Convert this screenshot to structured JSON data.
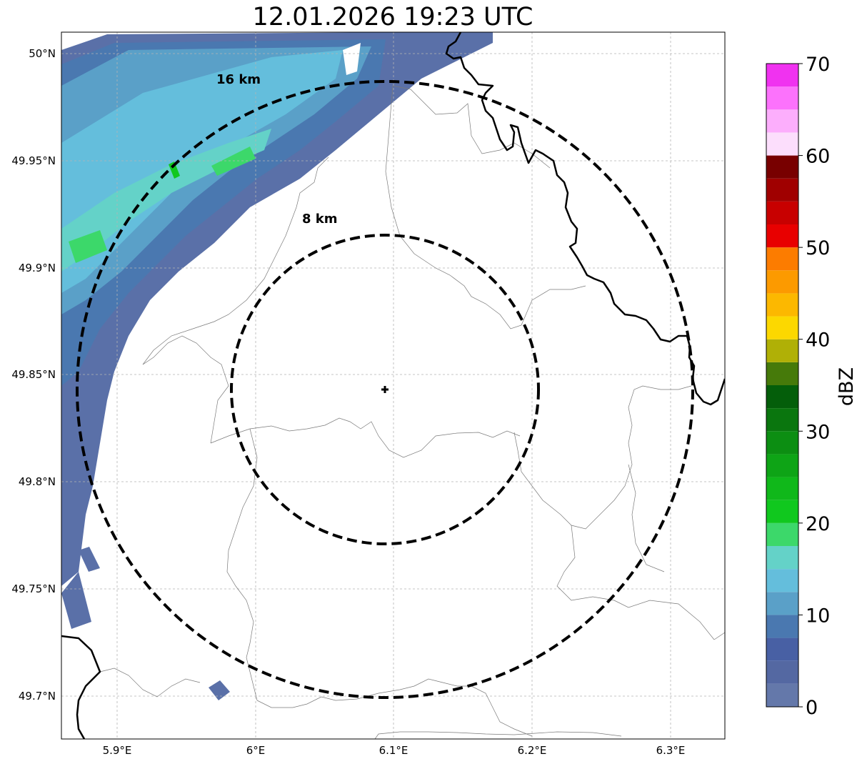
{
  "title": "12.01.2026 19:23 UTC",
  "map": {
    "lon_range": [
      5.86,
      6.34
    ],
    "lat_range": [
      49.68,
      50.01
    ],
    "x_ticks": [
      {
        "lon": 5.9,
        "label": "5.9°E"
      },
      {
        "lon": 6.0,
        "label": "6°E"
      },
      {
        "lon": 6.1,
        "label": "6.1°E"
      },
      {
        "lon": 6.2,
        "label": "6.2°E"
      },
      {
        "lon": 6.3,
        "label": "6.3°E"
      }
    ],
    "y_ticks": [
      {
        "lat": 50.0,
        "label": "50°N"
      },
      {
        "lat": 49.95,
        "label": "49.95°N"
      },
      {
        "lat": 49.9,
        "label": "49.9°N"
      },
      {
        "lat": 49.85,
        "label": "49.85°N"
      },
      {
        "lat": 49.8,
        "label": "49.8°N"
      },
      {
        "lat": 49.75,
        "label": "49.75°N"
      },
      {
        "lat": 49.7,
        "label": "49.7°N"
      }
    ],
    "gridlines": true,
    "radar_site": {
      "lon": 6.095,
      "lat": 49.843
    },
    "range_rings": [
      {
        "km": 8,
        "label": "8 km"
      },
      {
        "km": 16,
        "label": "16 km"
      }
    ]
  },
  "colorbar": {
    "label": "dBZ",
    "min": 0,
    "max": 70,
    "step": 2.5,
    "tick_labels": [
      "0",
      "10",
      "20",
      "30",
      "40",
      "50",
      "60",
      "70"
    ],
    "colors": [
      "#6478aa",
      "#5468a2",
      "#4860a4",
      "#4a78b0",
      "#5aa0c8",
      "#64bedc",
      "#64d2c8",
      "#3cd86a",
      "#10c81e",
      "#10b81a",
      "#0ea416",
      "#0c8e12",
      "#0a760e",
      "#045e0a",
      "#467a0a",
      "#b0b006",
      "#fcd800",
      "#fcb800",
      "#fc9a00",
      "#fc7c00",
      "#e80000",
      "#c80000",
      "#a00000",
      "#780000",
      "#fcdefc",
      "#fcaefc",
      "#fc72fc",
      "#f032f0"
    ]
  }
}
